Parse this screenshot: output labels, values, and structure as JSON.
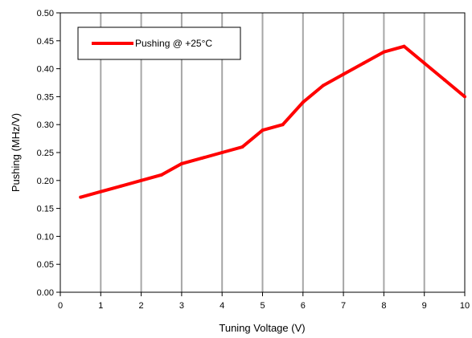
{
  "chart_data": {
    "type": "line",
    "xlabel": "Tuning Voltage (V)",
    "ylabel": "Pushing (MHz/V)",
    "xlim": [
      0,
      10
    ],
    "ylim": [
      0,
      0.5
    ],
    "x_ticks": [
      "0",
      "1",
      "2",
      "3",
      "4",
      "5",
      "6",
      "7",
      "8",
      "9",
      "10"
    ],
    "y_ticks": [
      "0.00",
      "0.05",
      "0.10",
      "0.15",
      "0.20",
      "0.25",
      "0.30",
      "0.35",
      "0.40",
      "0.45",
      "0.50"
    ],
    "grid": "vertical",
    "legend_position": "top-left",
    "series": [
      {
        "name": "Pushing @ +25°C",
        "color": "#ff0000",
        "x": [
          0.5,
          1,
          1.5,
          2,
          2.5,
          3,
          3.5,
          4,
          4.5,
          5,
          5.5,
          6,
          6.5,
          7,
          7.5,
          8,
          8.5,
          9,
          9.5,
          10
        ],
        "y": [
          0.17,
          0.18,
          0.19,
          0.2,
          0.21,
          0.23,
          0.24,
          0.25,
          0.26,
          0.29,
          0.3,
          0.34,
          0.37,
          0.39,
          0.41,
          0.43,
          0.44,
          0.41,
          0.38,
          0.35
        ]
      }
    ]
  }
}
